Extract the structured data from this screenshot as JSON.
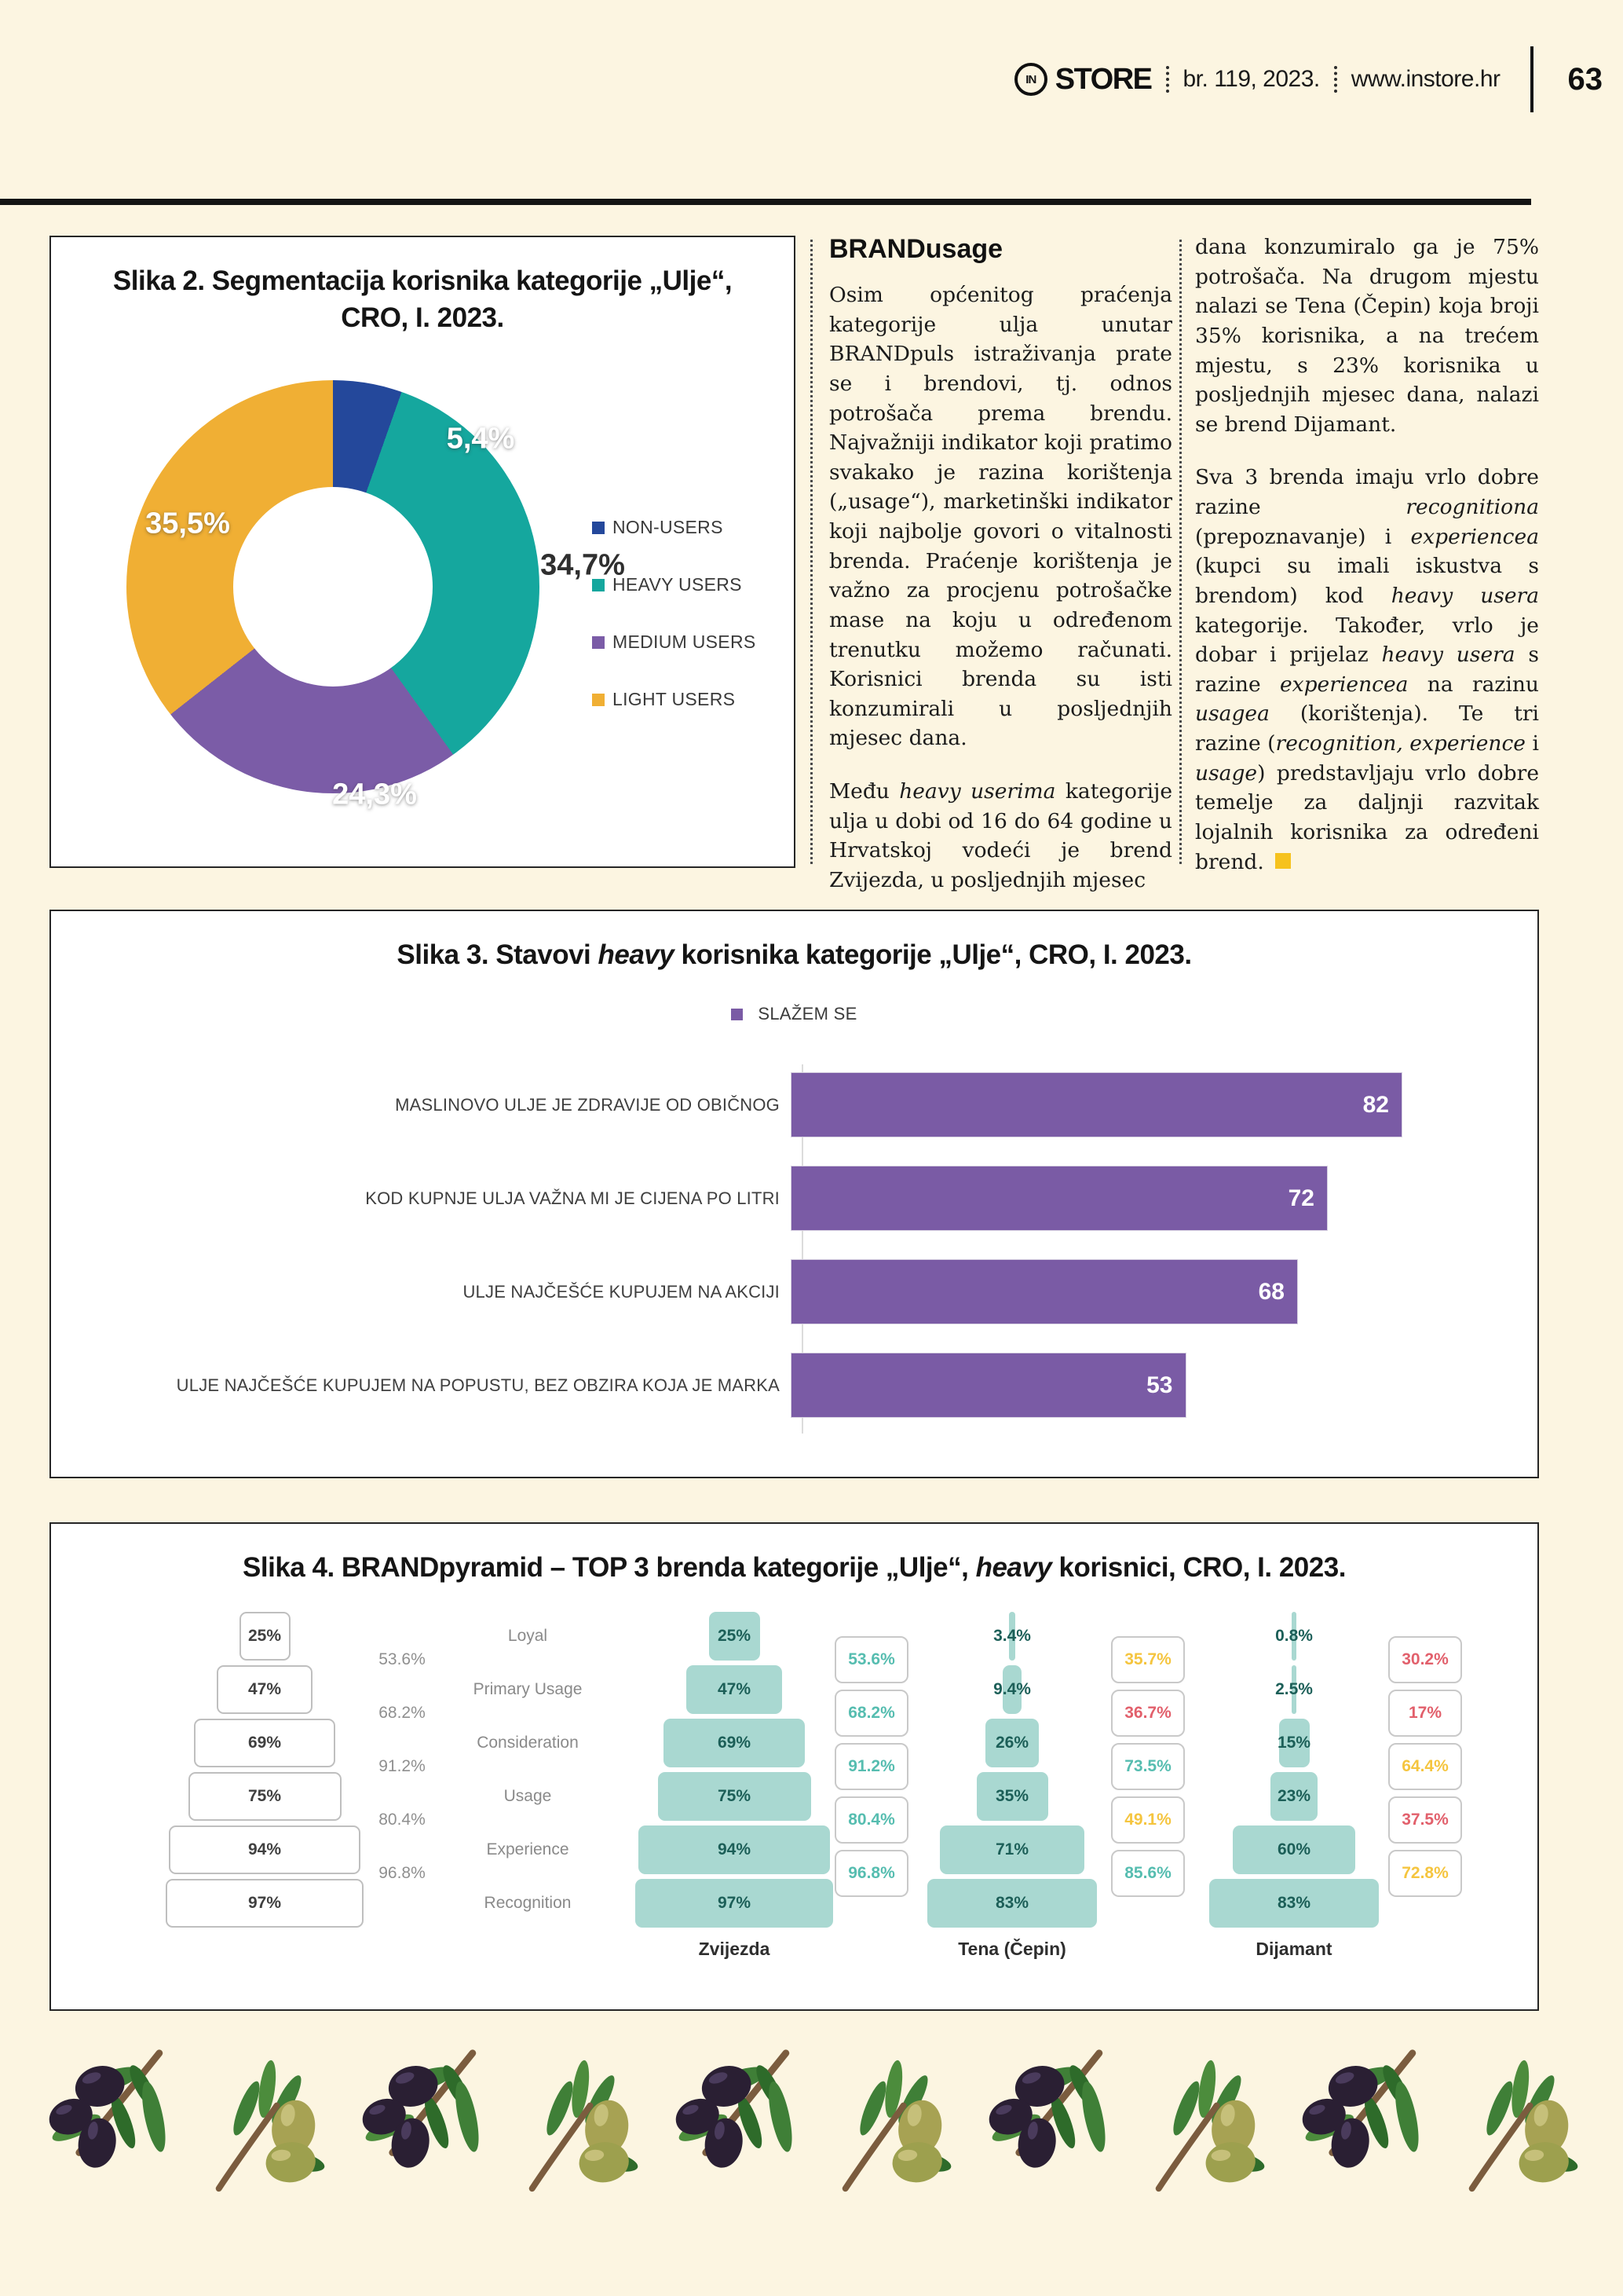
{
  "page": {
    "background": "#FCF5E1"
  },
  "header": {
    "logo_monogram": "IN",
    "logo_text": "STORE",
    "issue": "br. 119, 2023.",
    "website": "www.instore.hr",
    "page_number": "63"
  },
  "article": {
    "heading": "BRANDusage",
    "col1": {
      "p1": [
        {
          "t": "Osim općenitog praćenja kategorije ulja unutar BRANDpuls istraživanja prate se i brendovi, tj. odnos potrošača prema brendu. Najvažniji indikator koji pratimo svakako je razina korištenja („usage“), marketinški indikator koji najbolje govori o vitalnosti brenda. Praćenje korištenja je važno za procjenu potrošačke mase na koju u određenom trenutku možemo računati. Korisnici brenda su isti konzumirali u posljednjih mjesec dana."
        }
      ],
      "p2": [
        {
          "t": "Među "
        },
        {
          "t": "heavy userima",
          "i": true
        },
        {
          "t": " kategorije ulja u dobi od 16 do 64 godine u Hrvatskoj vodeći je brend Zvijezda, u posljednjih mjesec"
        }
      ]
    },
    "col2": {
      "p1": [
        {
          "t": "dana konzumiralo ga je 75% potrošača. Na drugom mjestu nalazi se Tena (Čepin) koja broji 35% korisnika, a na trećem mjestu, s 23% korisnika u posljednjih mjesec dana, nalazi se brend Dijamant."
        }
      ],
      "p2": [
        {
          "t": "Sva 3 brenda imaju vrlo dobre razine "
        },
        {
          "t": "recognitiona",
          "i": true
        },
        {
          "t": " (prepoznavanje) i "
        },
        {
          "t": "experiencea",
          "i": true
        },
        {
          "t": " (kupci su imali iskustva s brendom) kod "
        },
        {
          "t": "heavy usera",
          "i": true
        },
        {
          "t": " kategorije. Također, vrlo je dobar i prijelaz "
        },
        {
          "t": "heavy usera",
          "i": true
        },
        {
          "t": " s razine "
        },
        {
          "t": "experiencea",
          "i": true
        },
        {
          "t": " na razinu "
        },
        {
          "t": "usagea",
          "i": true
        },
        {
          "t": " (korištenja). Te tri razine ("
        },
        {
          "t": "recognition, experience",
          "i": true
        },
        {
          "t": " i "
        },
        {
          "t": "usage",
          "i": true
        },
        {
          "t": ") predstavljaju vrlo dobre temelje za daljnji razvitak lojalnih korisnika za određeni brend."
        }
      ],
      "end_marker_color": "#F6C21E"
    }
  },
  "chart_data": [
    {
      "id": "user-segmentation-donut",
      "type": "pie",
      "donut": true,
      "title_line1": "Slika 2. Segmentacija korisnika kategorije „Ulje“,",
      "title_line2": "CRO, I. 2023.",
      "legend_position": "right",
      "segments": [
        {
          "label": "NON-USERS",
          "value": 5.4,
          "display": "5,4%",
          "color": "#24489B",
          "value_label_color": "#FFFFFF"
        },
        {
          "label": "HEAVY USERS",
          "value": 34.7,
          "display": "34,7%",
          "color": "#15A79E",
          "value_label_color": "#2F2F2F"
        },
        {
          "label": "MEDIUM USERS",
          "value": 24.3,
          "display": "24,3%",
          "color": "#7B5CA7",
          "value_label_color": "#FFFFFF"
        },
        {
          "label": "LIGHT USERS",
          "value": 35.5,
          "display": "35,5%",
          "color": "#F0AF34",
          "value_label_color": "#FFFFFF"
        }
      ]
    },
    {
      "id": "heavy-user-attitudes-bar",
      "type": "bar",
      "orientation": "horizontal",
      "title_segments": [
        {
          "t": "Slika 3. Stavovi "
        },
        {
          "t": "heavy",
          "i": true
        },
        {
          "t": " korisnika kategorije „Ulje“, CRO, I. 2023."
        }
      ],
      "legend": {
        "label": "SLAŽEM SE",
        "color": "#7A5BA5"
      },
      "bar_color": "#7A5BA5",
      "xlim": [
        0,
        100
      ],
      "grid": false,
      "bars": [
        {
          "label": "MASLINOVO ULJE JE ZDRAVIJE OD OBIČNOG",
          "value": 82
        },
        {
          "label": "KOD KUPNJE ULJA VAŽNA MI JE CIJENA PO LITRI",
          "value": 72
        },
        {
          "label": "ULJE NAJČEŠĆE KUPUJEM NA AKCIJI",
          "value": 68
        },
        {
          "label": "ULJE NAJČEŠĆE KUPUJEM NA POPUSTU, BEZ OBZIRA KOJA JE MARKA",
          "value": 53
        }
      ]
    },
    {
      "id": "brand-pyramid",
      "type": "pyramid",
      "title_segments": [
        {
          "t": "Slika 4. BRANDpyramid – TOP 3 brenda kategorije „Ulje“, "
        },
        {
          "t": "heavy",
          "i": true
        },
        {
          "t": " korisnici, CRO, I. 2023."
        }
      ],
      "levels": [
        "Loyal",
        "Primary Usage",
        "Consideration",
        "Usage",
        "Experience",
        "Recognition"
      ],
      "bar_fill": "#A9D8D1",
      "reference": {
        "values": [
          25,
          47,
          69,
          75,
          94,
          97
        ],
        "values_display": [
          "25%",
          "47%",
          "69%",
          "75%",
          "94%",
          "97%"
        ],
        "transitions": [
          {
            "v": "53.6%",
            "color": "#8F8F8F"
          },
          {
            "v": "68.2%",
            "color": "#8F8F8F"
          },
          {
            "v": "91.2%",
            "color": "#8F8F8F"
          },
          {
            "v": "80.4%",
            "color": "#8F8F8F"
          },
          {
            "v": "96.8%",
            "color": "#8F8F8F"
          }
        ]
      },
      "brands": [
        {
          "name": "Zvijezda",
          "values": [
            25,
            47,
            69,
            75,
            94,
            97
          ],
          "values_display": [
            "25%",
            "47%",
            "69%",
            "75%",
            "94%",
            "97%"
          ],
          "transitions": [
            {
              "v": "53.6%",
              "color": "#56BDB0"
            },
            {
              "v": "68.2%",
              "color": "#56BDB0"
            },
            {
              "v": "91.2%",
              "color": "#56BDB0"
            },
            {
              "v": "80.4%",
              "color": "#56BDB0"
            },
            {
              "v": "96.8%",
              "color": "#56BDB0"
            }
          ]
        },
        {
          "name": "Tena (Čepin)",
          "values": [
            3.4,
            9.4,
            26,
            35,
            71,
            83
          ],
          "values_display": [
            "3.4%",
            "9.4%",
            "26%",
            "35%",
            "71%",
            "83%"
          ],
          "transitions": [
            {
              "v": "35.7%",
              "color": "#F5C53F"
            },
            {
              "v": "36.7%",
              "color": "#E2606C"
            },
            {
              "v": "73.5%",
              "color": "#56BDB0"
            },
            {
              "v": "49.1%",
              "color": "#F5C53F"
            },
            {
              "v": "85.6%",
              "color": "#56BDB0"
            }
          ]
        },
        {
          "name": "Dijamant",
          "values": [
            0.8,
            2.5,
            15,
            23,
            60,
            83
          ],
          "values_display": [
            "0.8%",
            "2.5%",
            "15%",
            "23%",
            "60%",
            "83%"
          ],
          "transitions": [
            {
              "v": "30.2%",
              "color": "#E2606C"
            },
            {
              "v": "17%",
              "color": "#E2606C"
            },
            {
              "v": "64.4%",
              "color": "#F5C53F"
            },
            {
              "v": "37.5%",
              "color": "#E2606C"
            },
            {
              "v": "72.8%",
              "color": "#F5C53F"
            }
          ]
        }
      ]
    }
  ]
}
